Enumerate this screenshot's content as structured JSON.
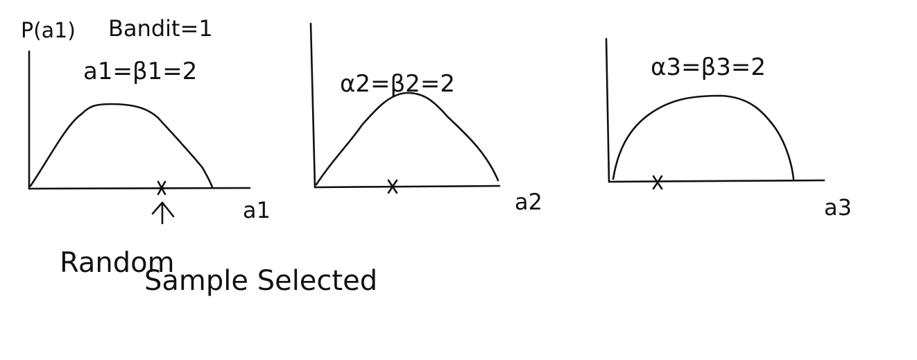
{
  "ink_color": "#111111",
  "background": "#ffffff",
  "header": {
    "prob_label": "P(a1)",
    "bandit_label": "Bandit=1"
  },
  "panels": [
    {
      "param_label": "a1=β1=2",
      "axis_label": "a1"
    },
    {
      "param_label": "α2=β2=2",
      "axis_label": "a2"
    },
    {
      "param_label": "α3=β3=2",
      "axis_label": "a3"
    }
  ],
  "annotation": {
    "line1": "Random",
    "line2": "Sample Selected"
  }
}
